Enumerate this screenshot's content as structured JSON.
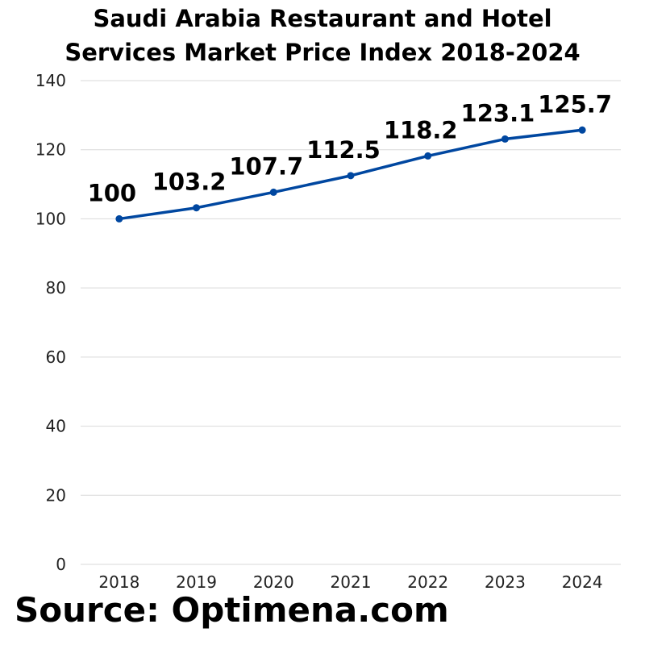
{
  "chart_data": {
    "type": "line",
    "title_lines": [
      "Saudi Arabia Restaurant and Hotel",
      "Services Market Price Index 2018-2024"
    ],
    "categories": [
      "2018",
      "2019",
      "2020",
      "2021",
      "2022",
      "2023",
      "2024"
    ],
    "series": [
      {
        "values": [
          100,
          103.2,
          107.7,
          112.5,
          118.2,
          123.1,
          125.7
        ]
      }
    ],
    "data_labels": [
      "100",
      "103.2",
      "107.7",
      "112.5",
      "118.2",
      "123.1",
      "125.7"
    ],
    "ylim": [
      0,
      140
    ],
    "yticks": [
      0,
      20,
      40,
      60,
      80,
      100,
      120,
      140
    ],
    "grid": true,
    "line_color": "#0047A0",
    "grid_color": "#d9d9d9"
  },
  "source": "Source: Optimena.com"
}
